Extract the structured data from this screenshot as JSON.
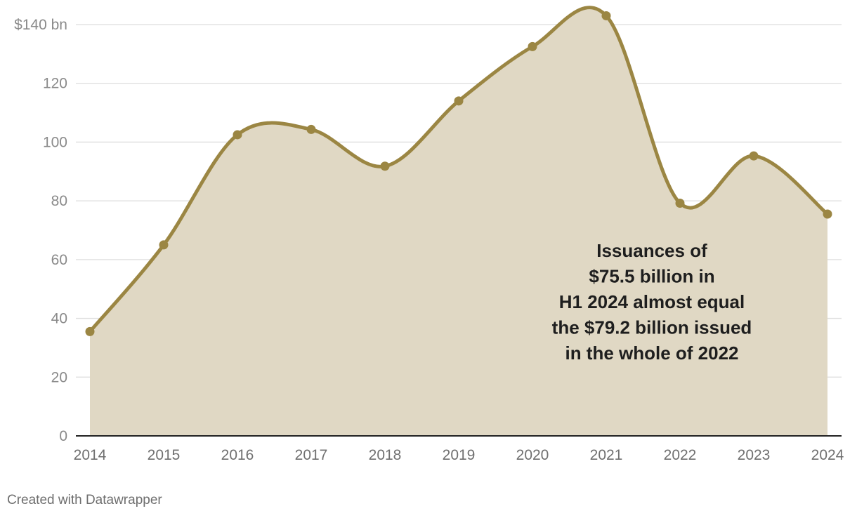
{
  "chart_data": {
    "type": "area",
    "x": [
      "2014",
      "2015",
      "2016",
      "2017",
      "2018",
      "2019",
      "2020",
      "2021",
      "2022",
      "2023",
      "2024"
    ],
    "values": [
      35.5,
      65,
      102.5,
      104.3,
      91.8,
      114,
      132.5,
      143,
      79.2,
      95.3,
      75.5
    ],
    "ylim": [
      0,
      140
    ],
    "yticks": [
      0,
      20,
      40,
      60,
      80,
      100,
      120,
      140
    ],
    "ytick_labels": [
      "0",
      "20",
      "40",
      "60",
      "80",
      "100",
      "120",
      "$140 bn"
    ],
    "grid": "horizontal",
    "annotation": [
      "Issuances of",
      "$75.5 billion in",
      "H1 2024 almost equal",
      "the $79.2 billion issued",
      "in the whole of 2022"
    ],
    "colors": {
      "line": "#9b8643",
      "area": "#e0d8c4",
      "grid": "#dddddd",
      "baseline": "#222222"
    }
  },
  "footer": {
    "credit": "Created with Datawrapper"
  }
}
